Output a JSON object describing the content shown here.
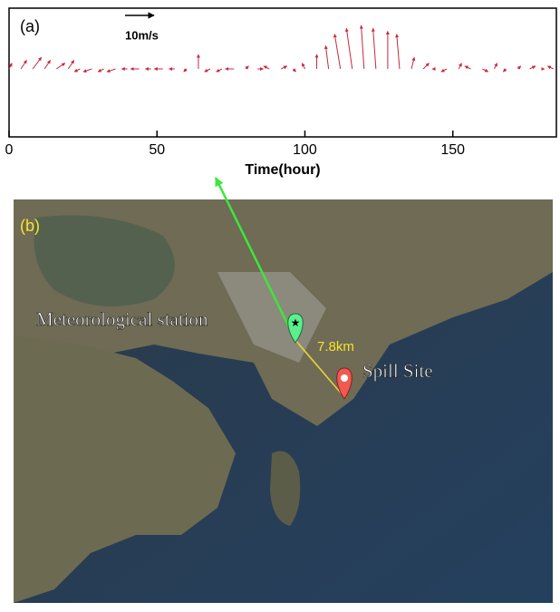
{
  "chart_data": {
    "type": "quiver",
    "panel_label": "(a)",
    "xlabel": "Time(hour)",
    "reference": {
      "value": 10,
      "label": "10m/s"
    },
    "xlim": [
      0,
      185
    ],
    "xticks": [
      0,
      50,
      100,
      150
    ],
    "color": "#c8283c",
    "x": [
      0,
      4,
      8,
      12,
      16,
      20,
      24,
      28,
      32,
      36,
      40,
      44,
      48,
      52,
      56,
      60,
      64,
      68,
      72,
      76,
      80,
      84,
      88,
      92,
      96,
      100,
      104,
      108,
      112,
      116,
      120,
      124,
      128,
      132,
      136,
      140,
      144,
      148,
      152,
      156,
      160,
      164,
      168,
      172,
      176,
      180,
      184
    ],
    "u": [
      1,
      2,
      3,
      2,
      3,
      2,
      -2,
      -3,
      -2,
      -3,
      -2,
      -3,
      -2,
      -3,
      -2,
      -1,
      0,
      -2,
      -2,
      -3,
      1,
      2,
      -2,
      2,
      1,
      -1,
      0,
      -1,
      -2,
      -2,
      -1,
      -1,
      0,
      -1,
      1,
      2,
      -1,
      -2,
      1,
      -2,
      2,
      1,
      -1,
      1,
      2,
      1,
      -2
    ],
    "v": [
      2,
      3,
      4,
      3,
      2,
      3,
      -1,
      -1,
      -1,
      -1,
      0,
      0,
      0,
      0,
      0,
      -1,
      5,
      -1,
      -1,
      0,
      1,
      0,
      1,
      1,
      -1,
      2,
      5,
      8,
      12,
      14,
      15,
      14,
      13,
      12,
      4,
      2,
      0,
      -1,
      2,
      1,
      -1,
      2,
      -1,
      1,
      1,
      0,
      1
    ]
  },
  "map": {
    "panel_label": "(b)",
    "station": "Meteorological station",
    "distance": "7.8km",
    "spill": "Spill Site"
  }
}
